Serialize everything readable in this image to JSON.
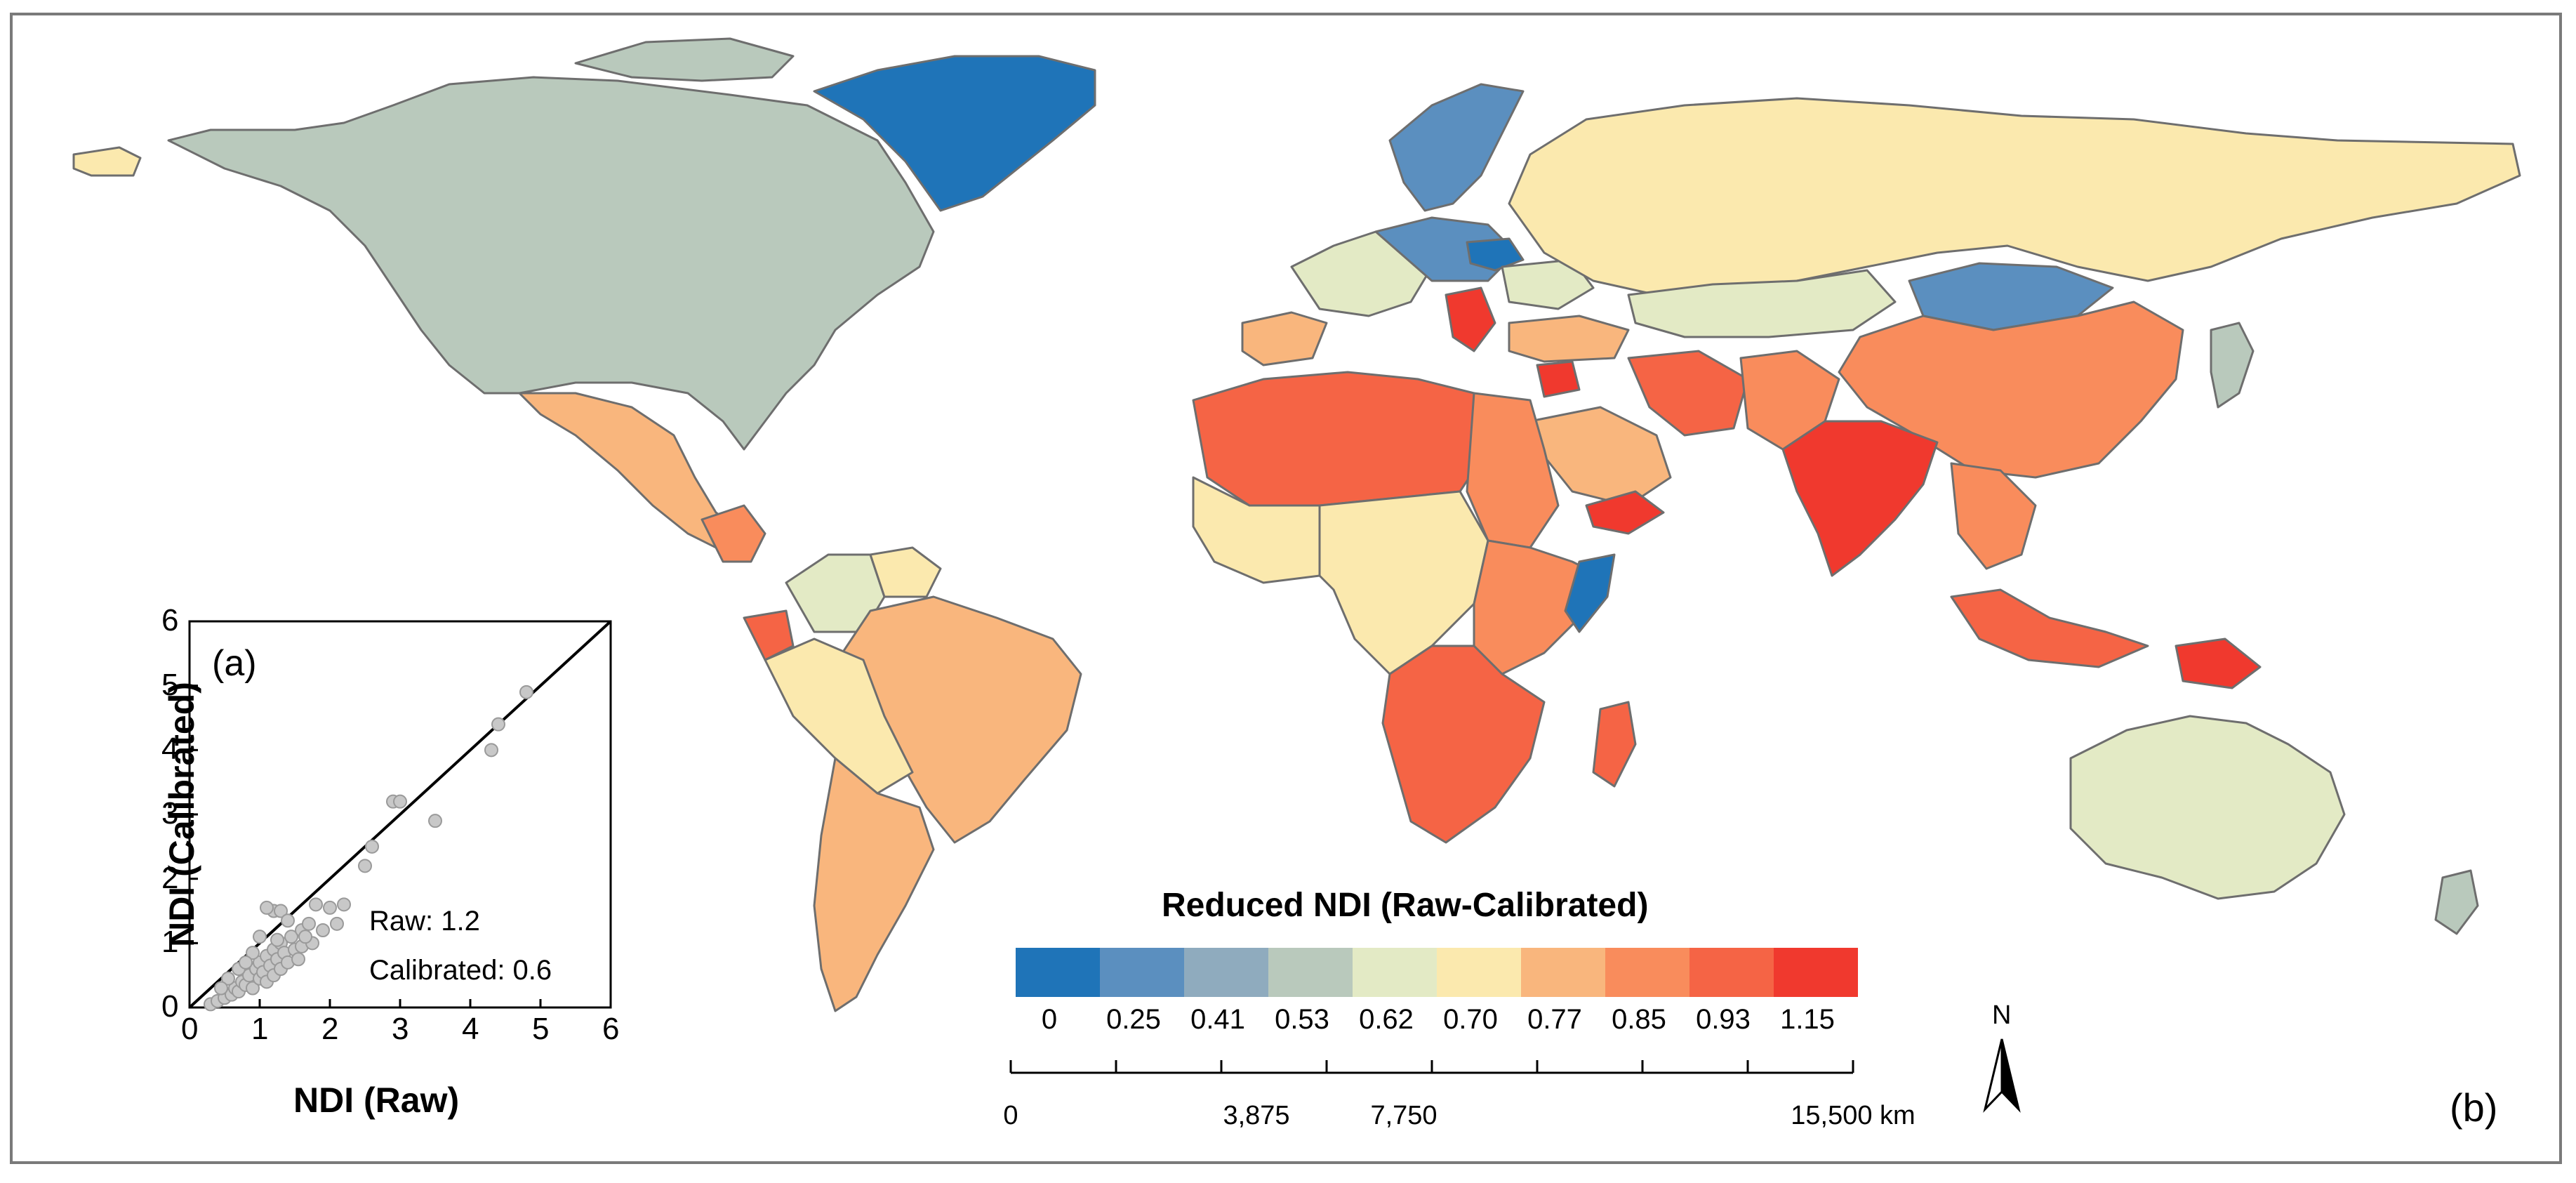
{
  "legend": {
    "title": "Reduced NDI (Raw-Calibrated)",
    "classes": [
      {
        "label": "0",
        "color": "#1f74b8"
      },
      {
        "label": "0.25",
        "color": "#5b8fbf"
      },
      {
        "label": "0.41",
        "color": "#8fabbe"
      },
      {
        "label": "0.53",
        "color": "#b9c9bc"
      },
      {
        "label": "0.62",
        "color": "#e3eac5"
      },
      {
        "label": "0.70",
        "color": "#fbe9ae"
      },
      {
        "label": "0.77",
        "color": "#f9b67d"
      },
      {
        "label": "0.85",
        "color": "#f98c5c"
      },
      {
        "label": "0.93",
        "color": "#f56445"
      },
      {
        "label": "1.15",
        "color": "#f0392e"
      }
    ]
  },
  "scale_bar": {
    "labels": [
      "0",
      "3,875",
      "7,750",
      "15,500 km"
    ]
  },
  "north_arrow": {
    "label": "N"
  },
  "panel_label_b": "(b)",
  "inset": {
    "panel_label": "(a)",
    "xlabel": "NDI (Raw)",
    "ylabel": "NDI (Calibrated)",
    "x_ticks": [
      "0",
      "1",
      "2",
      "3",
      "4",
      "5",
      "6"
    ],
    "y_ticks": [
      "0",
      "1",
      "2",
      "3",
      "4",
      "5",
      "6"
    ],
    "stat_raw": "Raw: 1.2",
    "stat_calibrated": "Calibrated: 0.6",
    "point_color": "#c8c8c8"
  },
  "chart_data": {
    "type": "scatter",
    "xlabel": "NDI (Raw)",
    "ylabel": "NDI (Calibrated)",
    "xlim": [
      0,
      6
    ],
    "ylim": [
      0,
      6
    ],
    "reference_line": "y = x",
    "annotations": [
      "Raw: 1.2",
      "Calibrated: 0.6"
    ],
    "points": [
      [
        0.3,
        0.05
      ],
      [
        0.4,
        0.1
      ],
      [
        0.5,
        0.15
      ],
      [
        0.6,
        0.2
      ],
      [
        0.65,
        0.3
      ],
      [
        0.7,
        0.25
      ],
      [
        0.75,
        0.4
      ],
      [
        0.8,
        0.35
      ],
      [
        0.85,
        0.5
      ],
      [
        0.9,
        0.3
      ],
      [
        0.95,
        0.6
      ],
      [
        1.0,
        0.45
      ],
      [
        1.0,
        0.7
      ],
      [
        1.05,
        0.55
      ],
      [
        1.1,
        0.8
      ],
      [
        1.1,
        0.4
      ],
      [
        1.15,
        0.65
      ],
      [
        1.2,
        0.9
      ],
      [
        1.2,
        0.5
      ],
      [
        1.25,
        0.75
      ],
      [
        1.3,
        1.0
      ],
      [
        1.3,
        0.6
      ],
      [
        1.35,
        0.85
      ],
      [
        1.4,
        0.7
      ],
      [
        1.45,
        1.1
      ],
      [
        1.5,
        0.9
      ],
      [
        1.55,
        0.75
      ],
      [
        1.6,
        1.2
      ],
      [
        1.6,
        0.95
      ],
      [
        1.7,
        1.3
      ],
      [
        1.75,
        1.0
      ],
      [
        1.8,
        1.6
      ],
      [
        1.9,
        1.2
      ],
      [
        2.0,
        1.55
      ],
      [
        2.1,
        1.3
      ],
      [
        2.2,
        1.6
      ],
      [
        1.2,
        1.5
      ],
      [
        1.3,
        1.5
      ],
      [
        1.1,
        1.55
      ],
      [
        0.9,
        0.85
      ],
      [
        0.7,
        0.6
      ],
      [
        0.55,
        0.45
      ],
      [
        1.0,
        1.1
      ],
      [
        1.4,
        1.35
      ],
      [
        2.5,
        2.2
      ],
      [
        2.6,
        2.5
      ],
      [
        2.9,
        3.2
      ],
      [
        3.0,
        3.2
      ],
      [
        3.5,
        2.9
      ],
      [
        4.3,
        4.0
      ],
      [
        4.4,
        4.4
      ],
      [
        4.8,
        4.9
      ],
      [
        0.45,
        0.3
      ],
      [
        0.8,
        0.7
      ],
      [
        1.25,
        1.05
      ],
      [
        1.65,
        1.1
      ]
    ]
  }
}
